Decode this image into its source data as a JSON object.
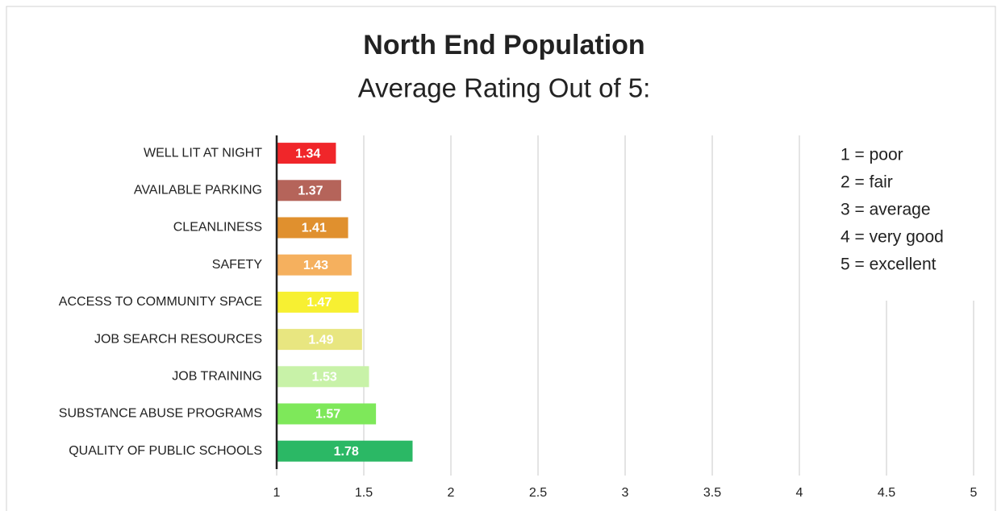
{
  "chart_data": {
    "type": "hbar",
    "title": "North End Population",
    "subtitle": "Average Rating Out of 5:",
    "categories": [
      "WELL LIT AT NIGHT",
      "AVAILABLE PARKING",
      "CLEANLINESS",
      "SAFETY",
      "ACCESS TO COMMUNITY SPACE",
      "JOB SEARCH RESOURCES",
      "JOB TRAINING",
      "SUBSTANCE ABUSE PROGRAMS",
      "QUALITY OF PUBLIC SCHOOLS"
    ],
    "values": [
      1.34,
      1.37,
      1.41,
      1.43,
      1.47,
      1.49,
      1.53,
      1.57,
      1.78
    ],
    "colors": [
      "#f0262a",
      "#b5645a",
      "#e0902e",
      "#f5b05e",
      "#f7f032",
      "#e8e680",
      "#c8f2a8",
      "#7ee85a",
      "#2bb865"
    ],
    "xlim": [
      1,
      5
    ],
    "xticks": [
      1,
      1.5,
      2,
      2.5,
      3,
      3.5,
      4,
      4.5,
      5
    ],
    "grid": true,
    "annotations": [
      "1 = poor",
      "2 = fair",
      "3 = average",
      "4 = very good",
      "5 = excellent"
    ]
  }
}
